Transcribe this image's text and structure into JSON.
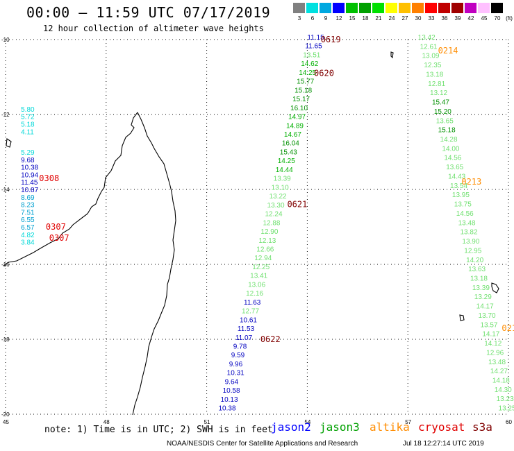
{
  "title": "00:00 – 11:59 UTC 07/17/2019",
  "subtitle": "12 hour collection of altimeter wave heights",
  "legend": {
    "unit": "(ft)",
    "bins": [
      {
        "label": "3",
        "color": "#808080"
      },
      {
        "label": "6",
        "color": "#00e0e0"
      },
      {
        "label": "9",
        "color": "#00a8e0"
      },
      {
        "label": "12",
        "color": "#0000ff"
      },
      {
        "label": "15",
        "color": "#00c000"
      },
      {
        "label": "18",
        "color": "#00a000"
      },
      {
        "label": "21",
        "color": "#00e000"
      },
      {
        "label": "24",
        "color": "#ffff00"
      },
      {
        "label": "27",
        "color": "#ffc000"
      },
      {
        "label": "30",
        "color": "#ff8000"
      },
      {
        "label": "33",
        "color": "#ff0000"
      },
      {
        "label": "36",
        "color": "#c00000"
      },
      {
        "label": "39",
        "color": "#a00000"
      },
      {
        "label": "42",
        "color": "#c000c0"
      },
      {
        "label": "45",
        "color": "#ffc0ff"
      },
      {
        "label": "70",
        "color": "#000000"
      }
    ]
  },
  "axes": {
    "lat_labels": [
      "-10",
      "-12",
      "-14",
      "-16",
      "-18",
      "-20"
    ],
    "lon_labels": [
      "45",
      "48",
      "51",
      "54",
      "57",
      "60"
    ]
  },
  "tracks": {
    "west": {
      "tags": [
        {
          "text": "0308",
          "lat": -13.7,
          "lon": 46.0
        },
        {
          "text": "0307",
          "lat": -15.0,
          "lon": 46.2
        },
        {
          "text": "0307",
          "lat": -15.3,
          "lon": 46.3
        }
      ],
      "readings": [
        {
          "text": "5.80",
          "lat": -11.85,
          "lon": 45.5,
          "color": "#00d8d8"
        },
        {
          "text": "5.72",
          "lat": -12.05,
          "lon": 45.5,
          "color": "#00d8d8"
        },
        {
          "text": "5.18",
          "lat": -12.25,
          "lon": 45.5,
          "color": "#00d8d8"
        },
        {
          "text": "4.11",
          "lat": -12.45,
          "lon": 45.5,
          "color": "#00d8d8"
        },
        {
          "text": "5.29",
          "lat": -13.0,
          "lon": 45.5,
          "color": "#00d8d8"
        },
        {
          "text": "9.68",
          "lat": -13.2,
          "lon": 45.5,
          "color": "#0000c0"
        },
        {
          "text": "10.38",
          "lat": -13.4,
          "lon": 45.5,
          "color": "#0000c0"
        },
        {
          "text": "10.94",
          "lat": -13.6,
          "lon": 45.5,
          "color": "#0000c0"
        },
        {
          "text": "11.45",
          "lat": -13.8,
          "lon": 45.5,
          "color": "#0000c0"
        },
        {
          "text": "10.87",
          "lat": -14.0,
          "lon": 45.5,
          "color": "#0000c0"
        },
        {
          "text": "8.69",
          "lat": -14.2,
          "lon": 45.5,
          "color": "#00a0d0"
        },
        {
          "text": "8.23",
          "lat": -14.4,
          "lon": 45.5,
          "color": "#00a0d0"
        },
        {
          "text": "7.51",
          "lat": -14.6,
          "lon": 45.5,
          "color": "#00a0d0"
        },
        {
          "text": "6.55",
          "lat": -14.8,
          "lon": 45.5,
          "color": "#00a0d0"
        },
        {
          "text": "6.57",
          "lat": -15.0,
          "lon": 45.5,
          "color": "#00a0d0"
        },
        {
          "text": "4.82",
          "lat": -15.2,
          "lon": 45.5,
          "color": "#00d8d8"
        },
        {
          "text": "3.84",
          "lat": -15.4,
          "lon": 45.5,
          "color": "#00d8d8"
        }
      ]
    },
    "jason_tags": [
      {
        "text": "0619",
        "lat": -10.0,
        "lon": 54.4
      },
      {
        "text": "0620",
        "lat": -10.9,
        "lon": 54.2
      },
      {
        "text": "0621",
        "lat": -14.4,
        "lon": 53.4
      },
      {
        "text": "0622",
        "lat": -18.0,
        "lon": 52.6
      }
    ],
    "jason": [
      {
        "text": "11.15",
        "color": "#0000c0"
      },
      {
        "text": "11.65",
        "color": "#0000c0"
      },
      {
        "text": "13.51",
        "color": "#70e070"
      },
      {
        "text": "14.62",
        "color": "#00b000"
      },
      {
        "text": "14.25",
        "color": "#00b000"
      },
      {
        "text": "15.77",
        "color": "#009000"
      },
      {
        "text": "15.18",
        "color": "#009000"
      },
      {
        "text": "15.17",
        "color": "#009000"
      },
      {
        "text": "16.10",
        "color": "#009000"
      },
      {
        "text": "14.97",
        "color": "#00b000"
      },
      {
        "text": "14.89",
        "color": "#00b000"
      },
      {
        "text": "14.67",
        "color": "#00b000"
      },
      {
        "text": "16.04",
        "color": "#009000"
      },
      {
        "text": "15.43",
        "color": "#009000"
      },
      {
        "text": "14.25",
        "color": "#00b000"
      },
      {
        "text": "14.44",
        "color": "#00b000"
      },
      {
        "text": "13.39",
        "color": "#70e070"
      },
      {
        "text": "13.10",
        "color": "#70e070"
      },
      {
        "text": "13.22",
        "color": "#70e070"
      },
      {
        "text": "13.30",
        "color": "#70e070"
      },
      {
        "text": "12.24",
        "color": "#70e070"
      },
      {
        "text": "12.88",
        "color": "#70e070"
      },
      {
        "text": "12.90",
        "color": "#70e070"
      },
      {
        "text": "12.13",
        "color": "#70e070"
      },
      {
        "text": "12.66",
        "color": "#70e070"
      },
      {
        "text": "12.94",
        "color": "#70e070"
      },
      {
        "text": "12.25",
        "color": "#70e070"
      },
      {
        "text": "13.41",
        "color": "#70e070"
      },
      {
        "text": "13.06",
        "color": "#70e070"
      },
      {
        "text": "12.16",
        "color": "#70e070"
      },
      {
        "text": "11.63",
        "color": "#0000c0"
      },
      {
        "text": "12.77",
        "color": "#70e070"
      },
      {
        "text": "10.61",
        "color": "#0000c0"
      },
      {
        "text": "11.53",
        "color": "#0000c0"
      },
      {
        "text": "11.07",
        "color": "#0000c0"
      },
      {
        "text": "9.78",
        "color": "#0000c0"
      },
      {
        "text": "9.59",
        "color": "#0000c0"
      },
      {
        "text": "9.96",
        "color": "#0000c0"
      },
      {
        "text": "10.31",
        "color": "#0000c0"
      },
      {
        "text": "9.64",
        "color": "#0000c0"
      },
      {
        "text": "10.58",
        "color": "#0000c0"
      },
      {
        "text": "10.13",
        "color": "#0000c0"
      },
      {
        "text": "10.38",
        "color": "#0000c0"
      }
    ],
    "altika_tags": [
      {
        "text": "0214",
        "lat": -10.3,
        "lon": 57.9
      },
      {
        "text": "0213",
        "lat": -13.8,
        "lon": 58.6
      },
      {
        "text": "021",
        "lat": -17.7,
        "lon": 59.8
      }
    ],
    "altika": [
      {
        "text": "13.42",
        "color": "#70e070"
      },
      {
        "text": "12.61",
        "color": "#70e070"
      },
      {
        "text": "13.09",
        "color": "#70e070"
      },
      {
        "text": "12.35",
        "color": "#70e070"
      },
      {
        "text": "13.18",
        "color": "#70e070"
      },
      {
        "text": "12.81",
        "color": "#70e070"
      },
      {
        "text": "13.12",
        "color": "#70e070"
      },
      {
        "text": "15.47",
        "color": "#009000"
      },
      {
        "text": "15.20",
        "color": "#009000"
      },
      {
        "text": "13.65",
        "color": "#70e070"
      },
      {
        "text": "15.18",
        "color": "#009000"
      },
      {
        "text": "14.28",
        "color": "#70e070"
      },
      {
        "text": "14.00",
        "color": "#70e070"
      },
      {
        "text": "14.56",
        "color": "#70e070"
      },
      {
        "text": "13.65",
        "color": "#70e070"
      },
      {
        "text": "14.43",
        "color": "#70e070"
      },
      {
        "text": "13.54",
        "color": "#70e070"
      },
      {
        "text": "13.95",
        "color": "#70e070"
      },
      {
        "text": "13.75",
        "color": "#70e070"
      },
      {
        "text": "14.56",
        "color": "#70e070"
      },
      {
        "text": "13.48",
        "color": "#70e070"
      },
      {
        "text": "13.82",
        "color": "#70e070"
      },
      {
        "text": "13.90",
        "color": "#70e070"
      },
      {
        "text": "12.95",
        "color": "#70e070"
      },
      {
        "text": "14.20",
        "color": "#70e070"
      },
      {
        "text": "13.63",
        "color": "#70e070"
      },
      {
        "text": "13.18",
        "color": "#70e070"
      },
      {
        "text": "13.39",
        "color": "#70e070"
      },
      {
        "text": "13.29",
        "color": "#70e070"
      },
      {
        "text": "14.17",
        "color": "#70e070"
      },
      {
        "text": "13.70",
        "color": "#70e070"
      },
      {
        "text": "13.57",
        "color": "#70e070"
      },
      {
        "text": "14.17",
        "color": "#70e070"
      },
      {
        "text": "14.12",
        "color": "#70e070"
      },
      {
        "text": "12.96",
        "color": "#70e070"
      },
      {
        "text": "13.48",
        "color": "#70e070"
      },
      {
        "text": "14.27",
        "color": "#70e070"
      },
      {
        "text": "14.18",
        "color": "#70e070"
      },
      {
        "text": "14.30",
        "color": "#70e070"
      },
      {
        "text": "13.23",
        "color": "#70e070"
      },
      {
        "text": "13.25",
        "color": "#70e070"
      }
    ]
  },
  "footer": {
    "note": "note: 1) Time is in UTC; 2) SWH is in feet",
    "satellites": [
      {
        "name": "jason2",
        "color": "#0000ff"
      },
      {
        "name": "jason3",
        "color": "#00a000"
      },
      {
        "name": "altika",
        "color": "#ff8c00"
      },
      {
        "name": "cryosat",
        "color": "#e00000"
      },
      {
        "name": "s3a",
        "color": "#800000"
      }
    ],
    "credit": "NOAA/NESDIS Center for Satellite Applications and Research",
    "timestamp": "Jul 18 12:27:14 UTC 2019"
  },
  "colors": {
    "tag_west": "#e00000",
    "tag_jason": "#800000",
    "tag_altika": "#ff8c00",
    "grid": "#000000"
  }
}
